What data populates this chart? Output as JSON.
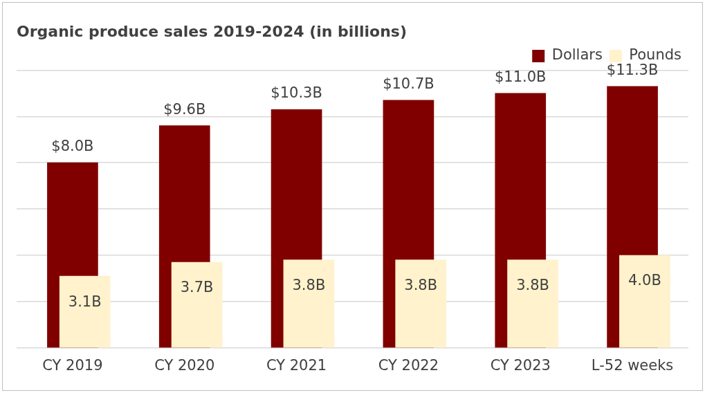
{
  "chart_data": {
    "type": "bar",
    "title": "Organic produce sales 2019-2024 (in billions)",
    "categories": [
      "CY 2019",
      "CY 2020",
      "CY 2021",
      "CY 2022",
      "CY 2023",
      "L-52 weeks"
    ],
    "series": [
      {
        "name": "Dollars",
        "color": "#800000",
        "values": [
          8.0,
          9.6,
          10.3,
          10.7,
          11.0,
          11.3
        ],
        "value_labels": [
          "$8.0B",
          "$9.6B",
          "$10.3B",
          "$10.7B",
          "$11.0B",
          "$11.3B"
        ]
      },
      {
        "name": "Pounds",
        "color": "#fff2cc",
        "values": [
          3.1,
          3.7,
          3.8,
          3.8,
          3.8,
          4.0
        ],
        "value_labels": [
          "3.1B",
          "3.7B",
          "3.8B",
          "3.8B",
          "3.8B",
          "4.0B"
        ]
      }
    ],
    "ylim": [
      0,
      12
    ],
    "yticks": [
      {
        "value": 0,
        "label": null
      },
      {
        "value": 2,
        "label": null
      },
      {
        "value": 4,
        "label": null
      },
      {
        "value": 6,
        "label": null
      },
      {
        "value": 8,
        "label": null
      },
      {
        "value": 10,
        "label": null
      },
      {
        "value": 12,
        "label": null
      }
    ],
    "tick_labels": "x",
    "grid": "y",
    "legend": "top right"
  }
}
